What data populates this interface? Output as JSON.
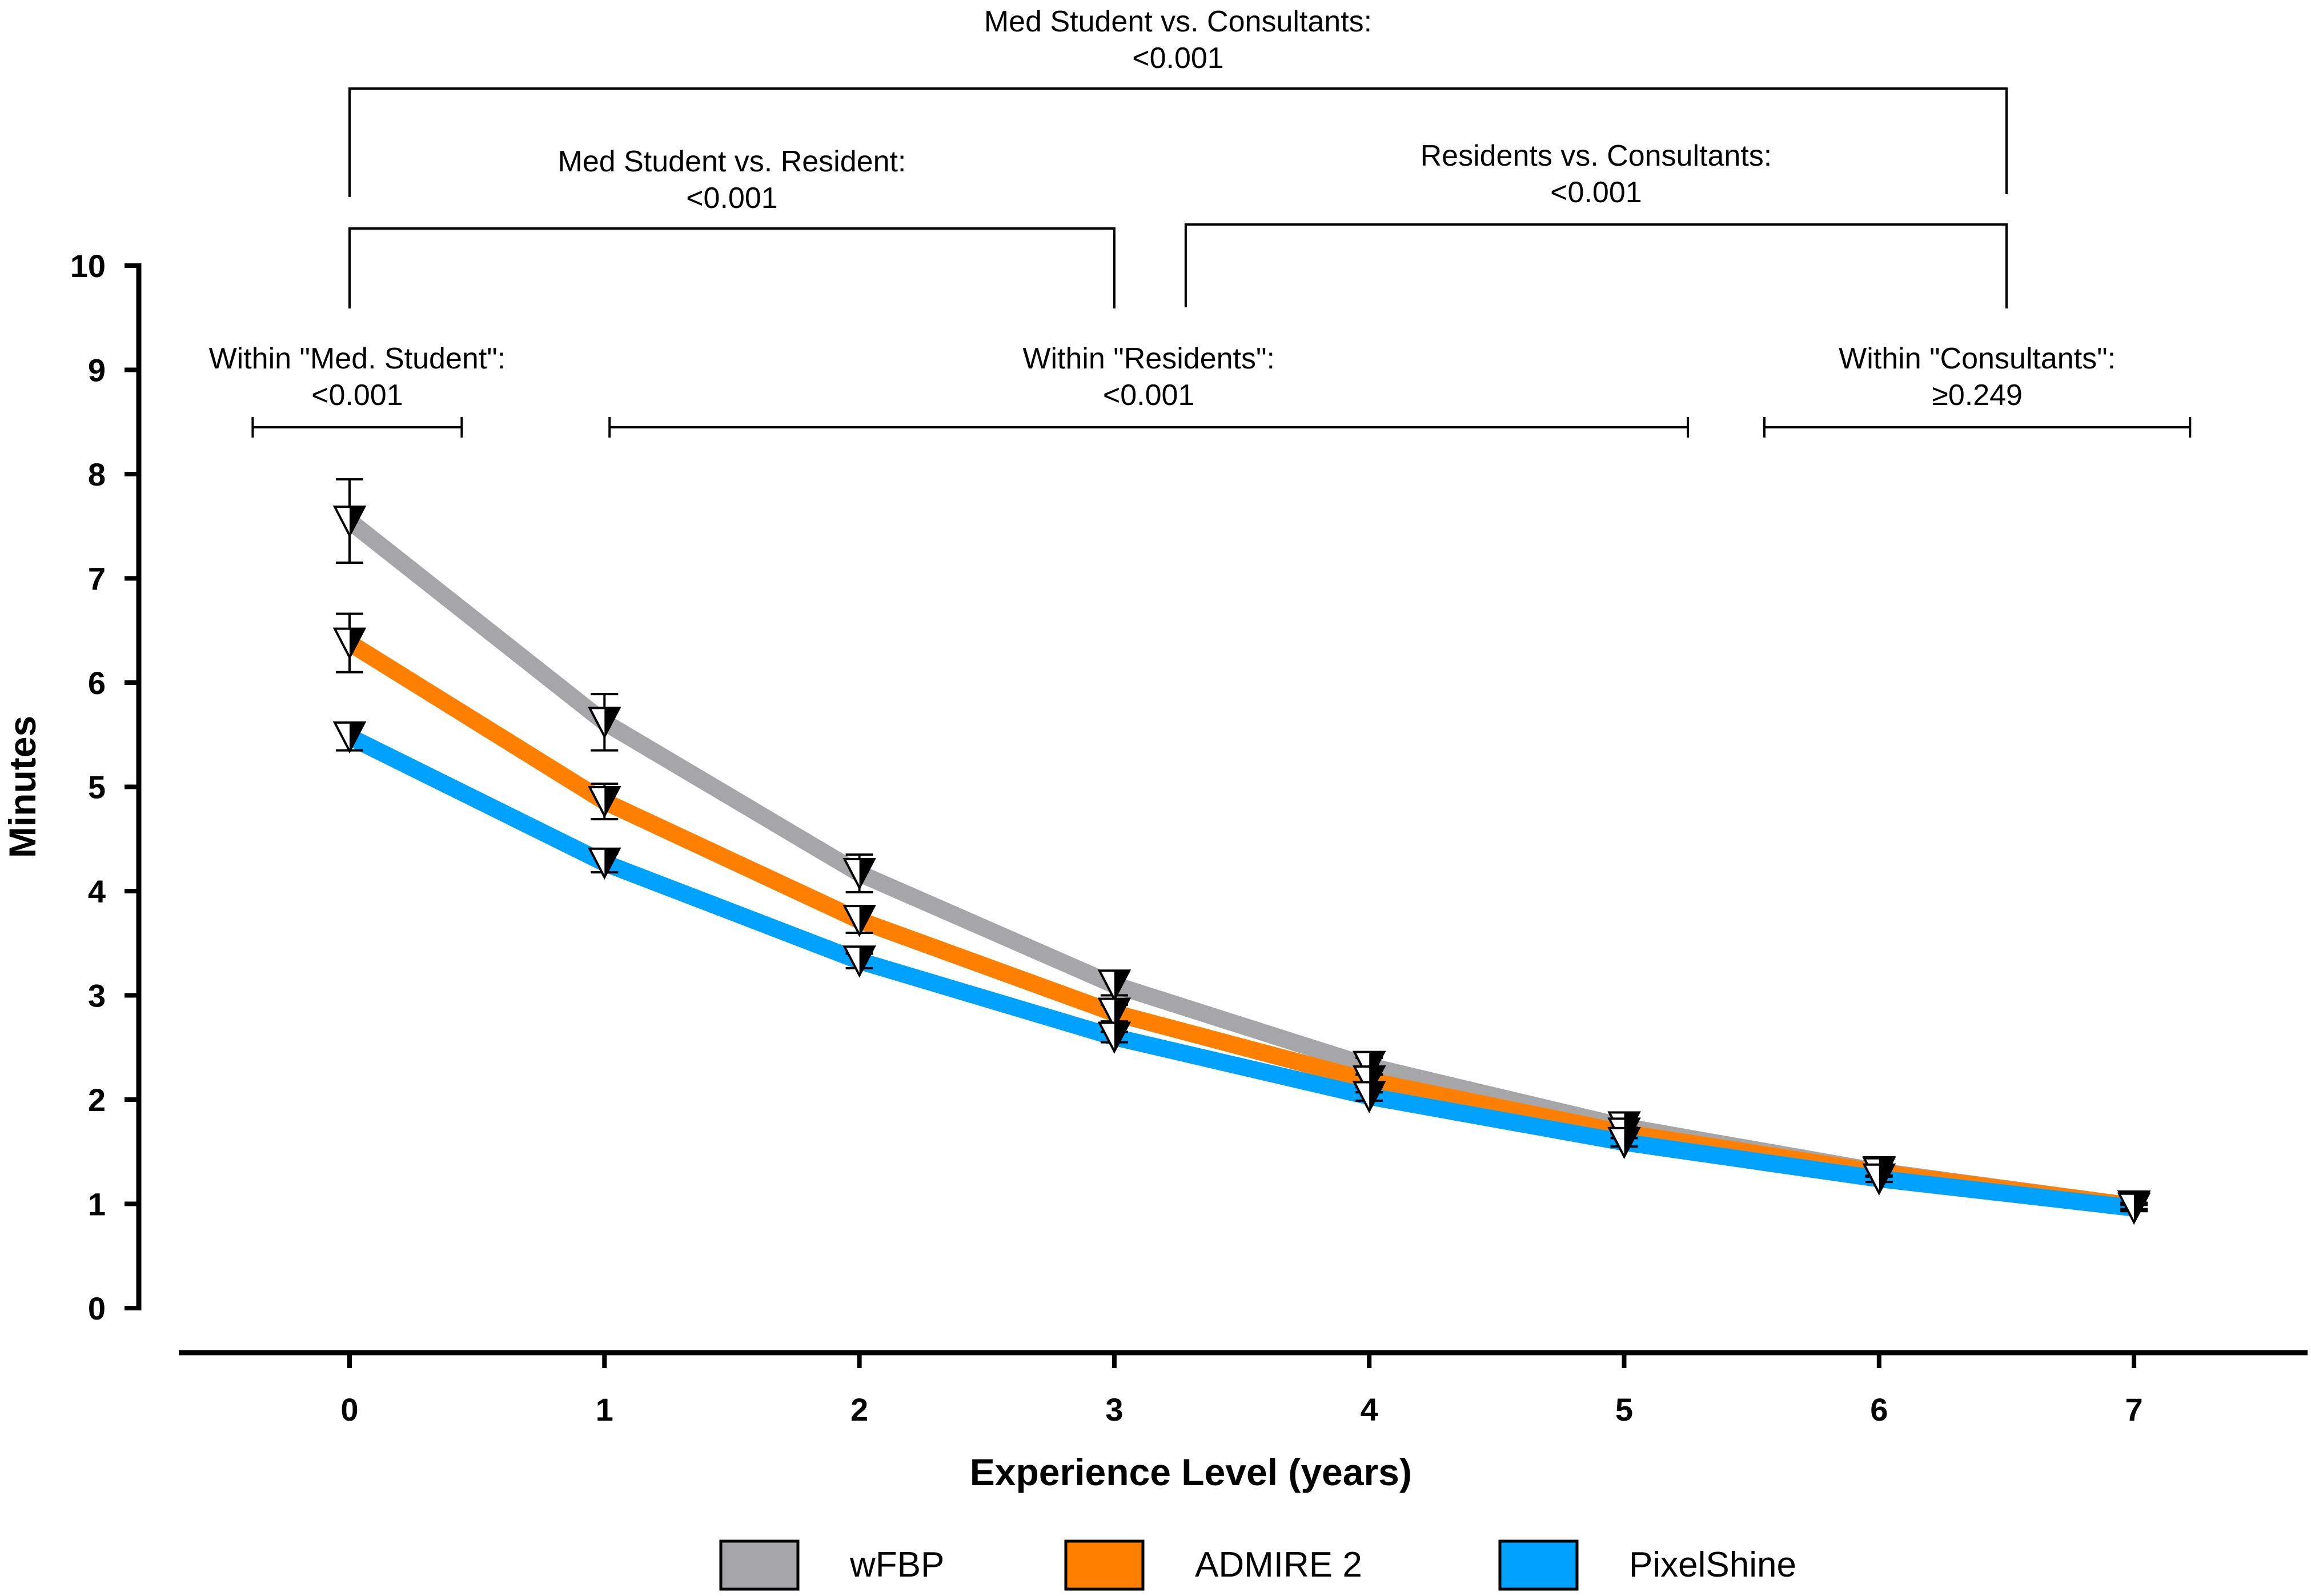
{
  "chart_data": {
    "type": "line",
    "xlabel": "Experience Level (years)",
    "ylabel": "Minutes",
    "x": [
      0,
      1,
      2,
      3,
      4,
      5,
      6,
      7
    ],
    "x_ticks": [
      "0",
      "1",
      "2",
      "3",
      "4",
      "5",
      "6",
      "7"
    ],
    "y_ticks": [
      "0",
      "1",
      "2",
      "3",
      "4",
      "5",
      "6",
      "7",
      "8",
      "9",
      "10"
    ],
    "ylim": [
      0,
      10
    ],
    "xlim": [
      -0.85,
      7.7
    ],
    "grid": false,
    "legend_position": "bottom",
    "series": [
      {
        "name": "wFBP",
        "color": "#a6a6a8",
        "values": [
          7.55,
          5.62,
          4.17,
          3.1,
          2.32,
          1.74,
          1.31,
          0.98
        ],
        "err": [
          0.4,
          0.27,
          0.18,
          0.1,
          0.08,
          0.06,
          0.04,
          0.03
        ]
      },
      {
        "name": "ADMIRE 2",
        "color": "#ff7f00",
        "values": [
          6.38,
          4.86,
          3.72,
          2.83,
          2.18,
          1.68,
          1.3,
          0.98
        ],
        "err": [
          0.28,
          0.17,
          0.12,
          0.08,
          0.06,
          0.05,
          0.04,
          0.03
        ]
      },
      {
        "name": "PixelShine",
        "color": "#00a2ff",
        "values": [
          5.48,
          4.27,
          3.33,
          2.6,
          2.03,
          1.59,
          1.24,
          0.96
        ],
        "err": [
          0.13,
          0.09,
          0.07,
          0.05,
          0.04,
          0.04,
          0.03,
          0.03
        ]
      }
    ],
    "annotations": {
      "top": {
        "line1": "Med Student vs. Consultants:",
        "line2": "<0.001",
        "from": 0,
        "to": 6.5
      },
      "mid_left": {
        "line1": "Med Student vs. Resident:",
        "line2": "<0.001",
        "from": 0,
        "to": 3
      },
      "mid_right": {
        "line1": "Residents vs. Consultants:",
        "line2": "<0.001",
        "from": 3.28,
        "to": 6.5
      },
      "within_students": {
        "line1": "Within \"Med. Student\":",
        "line2": "<0.001",
        "from": -0.38,
        "to": 0.44
      },
      "within_residents": {
        "line1": "Within \"Residents\":",
        "line2": "<0.001",
        "from": 1.02,
        "to": 5.25
      },
      "within_consultants": {
        "line1": "Within \"Consultants\":",
        "line2": "≥0.249",
        "from": 5.55,
        "to": 7.22
      }
    }
  }
}
